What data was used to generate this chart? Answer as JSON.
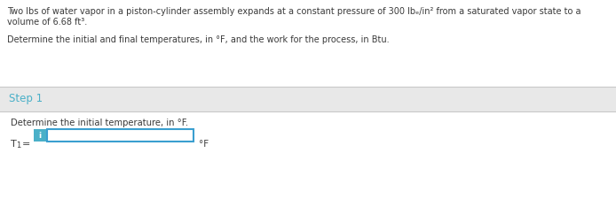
{
  "bg_color": "#f0f0f0",
  "white_color": "#ffffff",
  "blue_color": "#4ab0c8",
  "text_color": "#3a3a3a",
  "border_color": "#d0d0d0",
  "line1": "Two lbs of water vapor in a piston-cylinder assembly expands at a constant pressure of 300 lbₑ/in² from a saturated vapor state to a",
  "line2": "volume of 6.68 ft³.",
  "line3": "Determine the initial and final temperatures, in °F, and the work for the process, in Btu.",
  "step_label": "Step 1",
  "step_sub": "Determine the initial temperature, in °F.",
  "t1_prefix": "T",
  "t1_sub": "1",
  "t1_eq": "=",
  "unit_label": "°F",
  "info_letter": "i",
  "input_border_color": "#3a9fd0",
  "input_bg_color": "#ffffff",
  "step_bg_color": "#e8e8e8",
  "step_text_color": "#4ab0c8",
  "sep_color": "#c8c8c8"
}
